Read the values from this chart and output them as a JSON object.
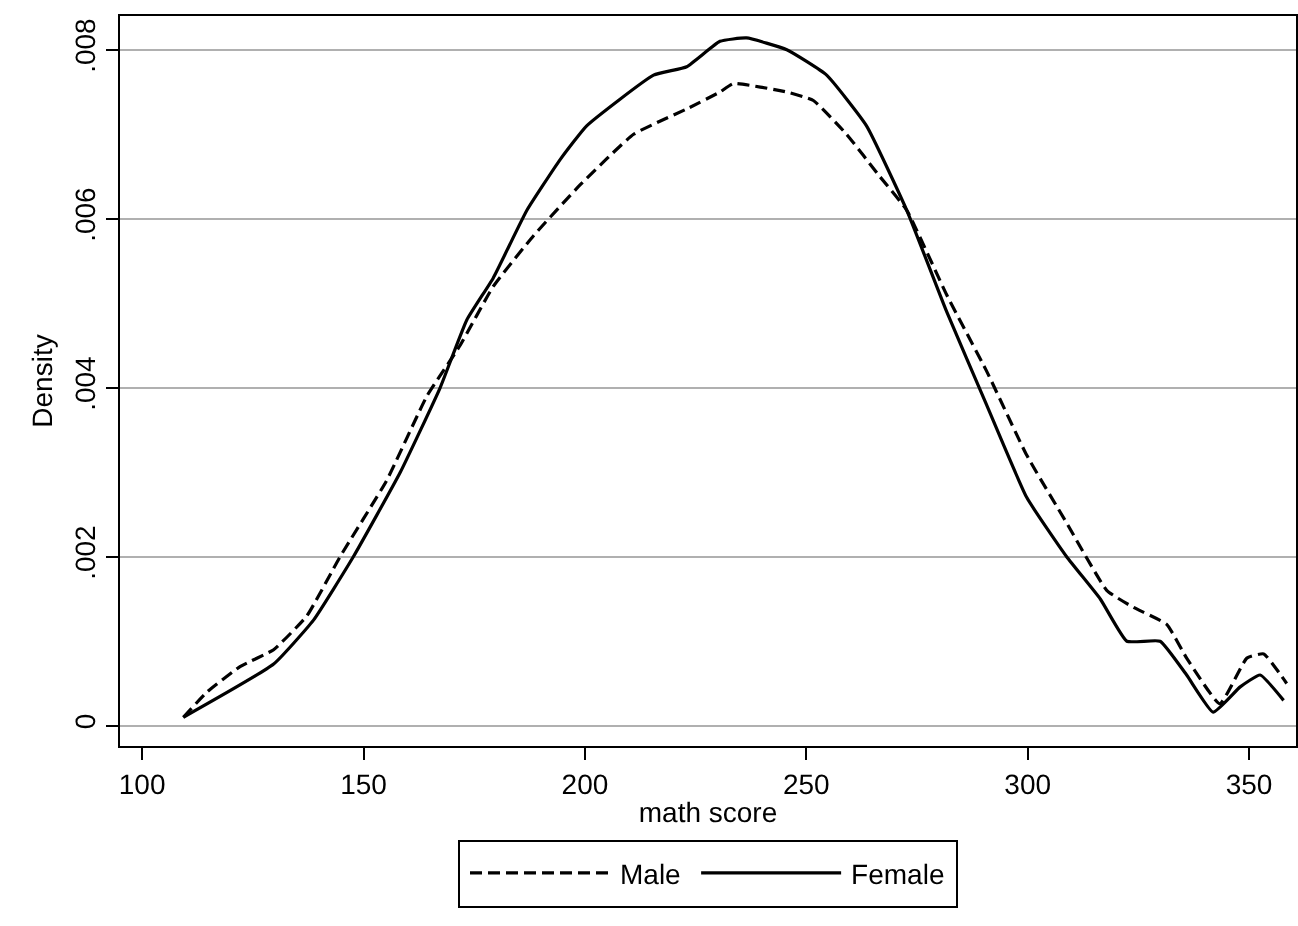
{
  "chart_data": {
    "type": "line",
    "xlabel": "math score",
    "ylabel": "Density",
    "xlim": [
      95,
      360.6
    ],
    "xticks": [
      100,
      150,
      200,
      250,
      300,
      350
    ],
    "ylim": [
      -0.00024,
      0.0084
    ],
    "yticks": [
      {
        "value": 0,
        "label": "0"
      },
      {
        "value": 0.002,
        "label": ".002"
      },
      {
        "value": 0.004,
        "label": ".004"
      },
      {
        "value": 0.006,
        "label": ".006"
      },
      {
        "value": 0.008,
        "label": ".008"
      }
    ],
    "grid": "y",
    "legend": "bottom",
    "marker": "none",
    "series": [
      {
        "name": "Male",
        "color": "#000000",
        "line_style": "dashed",
        "x": [
          109.3,
          114.7,
          122.1,
          129.7,
          137.2,
          144.7,
          155.2,
          164.3,
          171.8,
          179.3,
          188.4,
          198.9,
          211,
          223,
          230.5,
          233.5,
          245.6,
          251.6,
          259.1,
          266.6,
          272.7,
          281.7,
          290.7,
          299.8,
          308.8,
          317.9,
          323.9,
          331.4,
          335.9,
          343.4,
          349.5,
          353.3,
          358.5
        ],
        "values": [
          0.0001,
          0.0004,
          0.0007,
          0.0009,
          0.0013,
          0.002,
          0.0029,
          0.0039,
          0.0045,
          0.0052,
          0.0058,
          0.0064,
          0.007,
          0.0073,
          0.0075,
          0.0076,
          0.0075,
          0.0074,
          0.007,
          0.0065,
          0.0061,
          0.0051,
          0.0042,
          0.0032,
          0.0024,
          0.0016,
          0.0014,
          0.0012,
          0.0008,
          0.00026,
          0.0008,
          0.00085,
          0.0005
        ]
      },
      {
        "name": "Female",
        "color": "#000000",
        "line_style": "solid",
        "x": [
          109.3,
          129.7,
          138.7,
          147.7,
          158.3,
          167.3,
          173.3,
          179.3,
          186.9,
          194.4,
          200.4,
          215.5,
          223,
          230.5,
          236.5,
          245.6,
          254.6,
          263.6,
          272.7,
          281.7,
          290.7,
          299.8,
          308.8,
          316.4,
          322.4,
          329.9,
          335.9,
          341.9,
          348,
          352.5,
          357.8
        ],
        "values": [
          0.0001,
          0.00073,
          0.00125,
          0.002,
          0.003,
          0.004,
          0.0048,
          0.0053,
          0.0061,
          0.0067,
          0.0071,
          0.0077,
          0.0078,
          0.0081,
          0.00814,
          0.008,
          0.0077,
          0.0071,
          0.0061,
          0.0049,
          0.0038,
          0.0027,
          0.002,
          0.0015,
          0.001,
          0.001,
          0.0006,
          0.00016,
          0.00046,
          0.0006,
          0.0003
        ]
      }
    ]
  }
}
